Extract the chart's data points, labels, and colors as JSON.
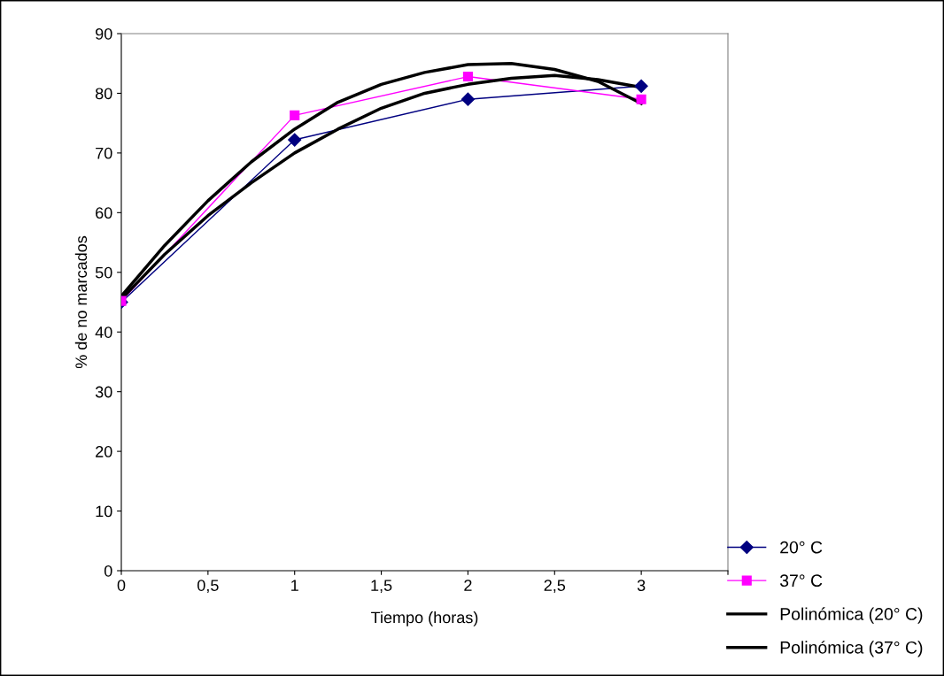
{
  "chart_data": {
    "type": "line",
    "xlabel": "Tiempo (horas)",
    "ylabel": "% de no marcados",
    "x": [
      0,
      1,
      2,
      3
    ],
    "series": [
      {
        "name": "20° C",
        "color": "#000080",
        "marker": "diamond",
        "values": [
          45,
          72.2,
          79,
          81.2
        ]
      },
      {
        "name": "37° C",
        "color": "#ff00ff",
        "marker": "square",
        "values": [
          45.2,
          76.3,
          82.8,
          79
        ]
      },
      {
        "name": "Polinómica (20° C)",
        "color": "#000000",
        "marker": "none",
        "x": [
          0,
          0.25,
          0.5,
          0.75,
          1,
          1.25,
          1.5,
          1.75,
          2,
          2.25,
          2.5,
          2.75,
          3
        ],
        "values": [
          45.5,
          53,
          59.5,
          65,
          70,
          74,
          77.5,
          80,
          81.5,
          82.5,
          83,
          82.3,
          81
        ]
      },
      {
        "name": "Polinómica (37° C)",
        "color": "#000000",
        "marker": "none",
        "x": [
          0,
          0.25,
          0.5,
          0.75,
          1,
          1.25,
          1.5,
          1.75,
          2,
          2.25,
          2.5,
          2.75,
          3
        ],
        "values": [
          46,
          54.5,
          62,
          68.5,
          74,
          78.5,
          81.5,
          83.5,
          84.8,
          85,
          84,
          82,
          78.3
        ]
      }
    ],
    "xlim": [
      0,
      3.5
    ],
    "xticks": [
      0,
      {
        "value": 0.5,
        "label": "0,5"
      },
      1,
      {
        "value": 1.5,
        "label": "1,5"
      },
      2,
      {
        "value": 2.5,
        "label": "2,5"
      },
      3,
      {
        "value": 3.5,
        "label": null
      }
    ],
    "ylim": [
      0,
      90
    ],
    "yticks": [
      0,
      10,
      20,
      30,
      40,
      50,
      60,
      70,
      80,
      90
    ],
    "grid": false,
    "legend": "bottom right"
  }
}
